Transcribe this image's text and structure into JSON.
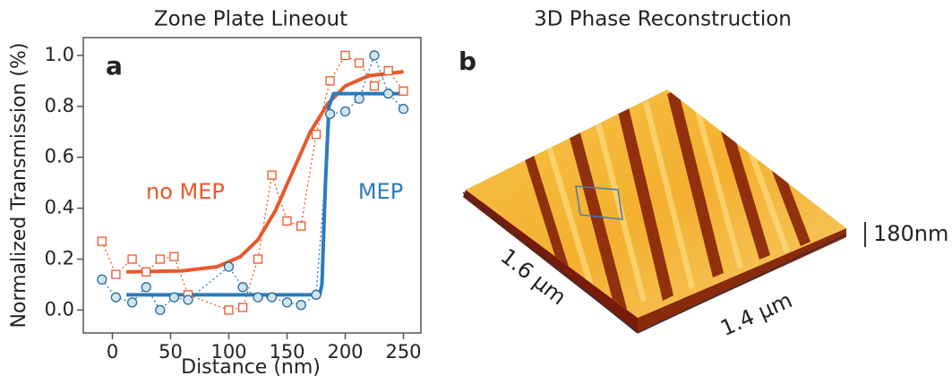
{
  "chart_data": {
    "type": "line",
    "title": "Zone Plate Lineout",
    "panel_label": "a",
    "x_label": "Distance (nm)",
    "y_label": "Normalized Transmission (%)",
    "xlim": [
      -25,
      265
    ],
    "ylim": [
      -0.09,
      1.07
    ],
    "xticks": [
      0,
      50,
      100,
      150,
      200,
      250
    ],
    "yticks": [
      {
        "value": 0,
        "label": "0.0"
      },
      {
        "value": 0.2,
        "label": "0.2"
      },
      {
        "value": 0.4,
        "label": "0.4"
      },
      {
        "value": 0.6,
        "label": "0.6"
      },
      {
        "value": 0.8,
        "label": "0.8"
      },
      {
        "value": 1,
        "label": "1.0"
      }
    ],
    "series": [
      {
        "name": "no MEP",
        "color": "#e8582a",
        "marker": "square",
        "x": [
          -9,
          3,
          17,
          29,
          41,
          53,
          65,
          100,
          112,
          125,
          137,
          150,
          162,
          175,
          187,
          200,
          212,
          225,
          237,
          250
        ],
        "values": [
          0.27,
          0.14,
          0.2,
          0.15,
          0.2,
          0.21,
          0.06,
          0.0,
          0.01,
          0.2,
          0.53,
          0.35,
          0.33,
          0.69,
          0.9,
          1.0,
          0.97,
          0.88,
          0.94,
          0.86
        ],
        "fit": {
          "x": [
            12,
            60,
            90,
            110,
            125,
            140,
            155,
            170,
            185,
            200,
            220,
            250
          ],
          "values": [
            0.15,
            0.154,
            0.17,
            0.21,
            0.276,
            0.39,
            0.545,
            0.7,
            0.81,
            0.88,
            0.92,
            0.936
          ]
        }
      },
      {
        "name": "MEP",
        "color": "#2b7bbf",
        "marker": "circle",
        "x": [
          -9,
          3,
          17,
          29,
          41,
          53,
          65,
          100,
          112,
          125,
          137,
          150,
          162,
          175,
          187,
          200,
          212,
          225,
          237,
          250
        ],
        "values": [
          0.12,
          0.05,
          0.03,
          0.09,
          0.0,
          0.05,
          0.04,
          0.17,
          0.09,
          0.05,
          0.05,
          0.03,
          0.02,
          0.06,
          0.77,
          0.78,
          0.83,
          1.0,
          0.85,
          0.79
        ],
        "fit": {
          "x": [
            12,
            178,
            180,
            183,
            186,
            190,
            250
          ],
          "values": [
            0.06,
            0.06,
            0.1,
            0.5,
            0.8,
            0.85,
            0.85
          ]
        }
      }
    ]
  },
  "panel_b": {
    "title": "3D Phase Reconstruction",
    "panel_label": "b",
    "depth_label": "1.6 µm",
    "width_label": "1.4 µm",
    "height_label": "180nm"
  }
}
